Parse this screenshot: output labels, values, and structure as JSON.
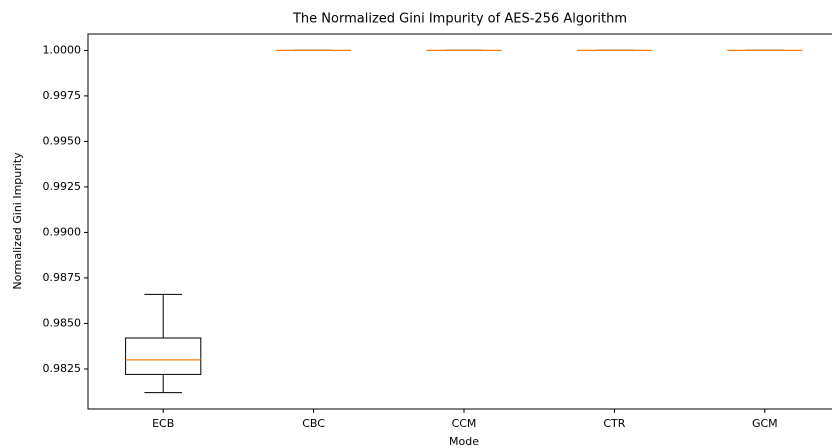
{
  "chart_data": {
    "type": "box",
    "title": "The Normalized Gini Impurity of AES-256 Algorithm",
    "xlabel": "Mode",
    "ylabel": "Normalized Gini Impurity",
    "categories": [
      "ECB",
      "CBC",
      "CCM",
      "CTR",
      "GCM"
    ],
    "boxes": [
      {
        "min": 0.9812,
        "q1": 0.9822,
        "median": 0.983,
        "q3": 0.9842,
        "max": 0.9866
      },
      {
        "min": 1.0,
        "q1": 1.0,
        "median": 1.0,
        "q3": 1.0,
        "max": 1.0
      },
      {
        "min": 1.0,
        "q1": 1.0,
        "median": 1.0,
        "q3": 1.0,
        "max": 1.0
      },
      {
        "min": 1.0,
        "q1": 1.0,
        "median": 1.0,
        "q3": 1.0,
        "max": 1.0
      },
      {
        "min": 1.0,
        "q1": 1.0,
        "median": 1.0,
        "q3": 1.0,
        "max": 1.0
      }
    ],
    "box_color": "#000000",
    "median_color": "#ff7f0e",
    "ylim": [
      0.9803,
      1.0009
    ],
    "yticks": [
      0.9825,
      {
        "value": 0.985,
        "label": "0.9850"
      },
      0.9875,
      {
        "value": 0.99,
        "label": "0.9900"
      },
      0.9925,
      {
        "value": 0.995,
        "label": "0.9950"
      },
      0.9975,
      {
        "value": 1.0,
        "label": "1.0000"
      }
    ],
    "grid": false
  }
}
